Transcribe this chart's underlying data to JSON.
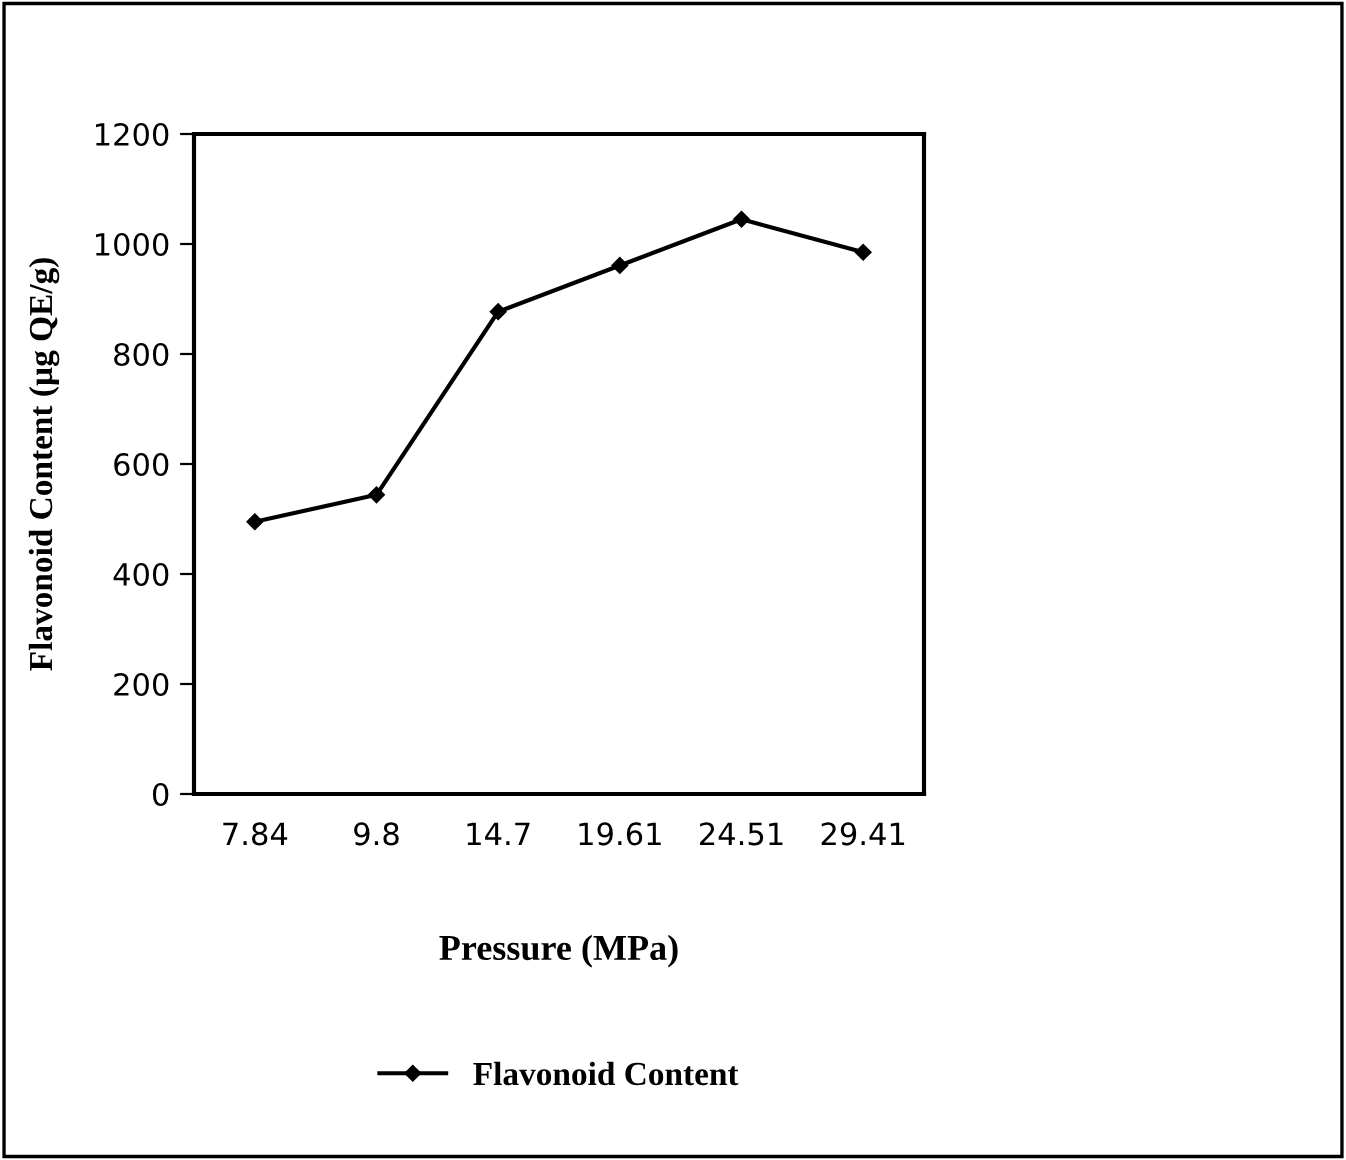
{
  "chart_data": {
    "type": "line",
    "xlabel": "Pressure (MPa)",
    "ylabel": "Flavonoid Content (µg QE/g)",
    "categories": [
      "7.84",
      "9.8",
      "14.7",
      "19.61",
      "24.51",
      "29.41"
    ],
    "series": [
      {
        "name": "Flavonoid Content",
        "color": "#000000",
        "values": [
          495,
          544,
          877,
          961,
          1045,
          985
        ]
      }
    ],
    "ylim": [
      0,
      1200
    ],
    "yticks": [
      0,
      200,
      400,
      600,
      800,
      1000,
      1200
    ],
    "grid": false,
    "legend": "bottom",
    "marker": "diamond",
    "line_style": "solid"
  }
}
